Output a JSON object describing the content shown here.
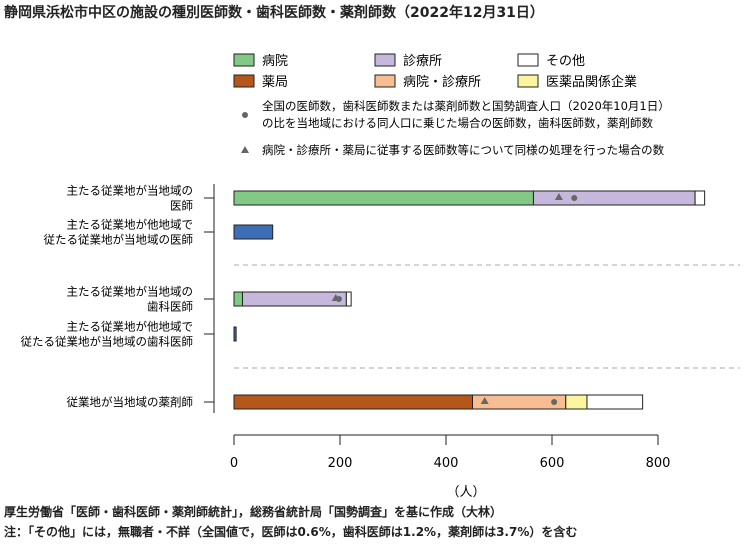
{
  "title": "静岡県浜松市中区の施設の種別医師数・歯科医師数・薬剤師数（2022年12月31日）",
  "footnotes": {
    "source": "厚生労働省「医師・歯科医師・薬剤師統計」，総務省統計局「国勢調査」を基に作成（大林）",
    "note": "注：「その他」には，無職者・不詳（全国値で，医師は0.6%，歯科医師は1.2%，薬剤師は3.7%）を含む"
  },
  "chart_data": {
    "type": "bar",
    "orientation": "horizontal",
    "stacked": true,
    "xlabel": "（人）",
    "xlim": [
      0,
      800
    ],
    "xticks": [
      0,
      200,
      400,
      600,
      800
    ],
    "rows": [
      {
        "label": [
          "主たる従業地が当地域の",
          "医師"
        ],
        "segments": [
          [
            "病院",
            565
          ],
          [
            "診療所",
            305
          ],
          [
            "その他",
            18
          ]
        ],
        "triangle": 613,
        "dot": 642
      },
      {
        "label": [
          "主たる従業地が他地域で",
          "従たる従業地が当地域の医師"
        ],
        "segments": [
          [
            "その他（他地域医師）",
            73
          ]
        ],
        "triangle": null,
        "dot": null
      },
      {
        "label": [
          "主たる従業地が当地域の",
          "歯科医師"
        ],
        "segments": [
          [
            "病院",
            16
          ],
          [
            "診療所",
            196
          ],
          [
            "その他",
            9
          ]
        ],
        "triangle": 192,
        "dot": 198
      },
      {
        "label": [
          "主たる従業地が他地域で",
          "従たる従業地が当地域の歯科医師"
        ],
        "segments": [
          [
            "その他（他地域歯科医師）",
            4
          ]
        ],
        "triangle": null,
        "dot": null
      },
      {
        "label": [
          "従業地が当地域の薬剤師"
        ],
        "segments": [
          [
            "薬局",
            450
          ],
          [
            "病院・診療所",
            176
          ],
          [
            "医薬品関係企業",
            40
          ],
          [
            "その他",
            105
          ]
        ],
        "triangle": 473,
        "dot": 604
      }
    ],
    "legend": [
      {
        "name": "病院",
        "color": "#82c985"
      },
      {
        "name": "診療所",
        "color": "#c6b8dc"
      },
      {
        "name": "その他",
        "color": "#ffffff"
      },
      {
        "name": "薬局",
        "color": "#b5561a"
      },
      {
        "name": "病院・診療所",
        "color": "#f8be93"
      },
      {
        "name": "医薬品関係企業",
        "color": "#fbf5a0"
      }
    ],
    "marker_notes": {
      "dot": [
        "全国の医師数，歯科医師数または薬剤師数と国勢調査人口（2020年10月1日）",
        "の比を当地域における同人口に乗じた場合の医師数，歯科医師数，薬剤師数"
      ],
      "triangle": "病院・診療所・薬局に従事する医師数等について同様の処理を行った場合の数"
    },
    "colors": {
      "その他（他地域医師）": "#3d6db5",
      "その他（他地域歯科医師）": "#3d6db5",
      "marker": "#666666",
      "axis": "#222222",
      "divider": "#aaaaaa"
    }
  }
}
